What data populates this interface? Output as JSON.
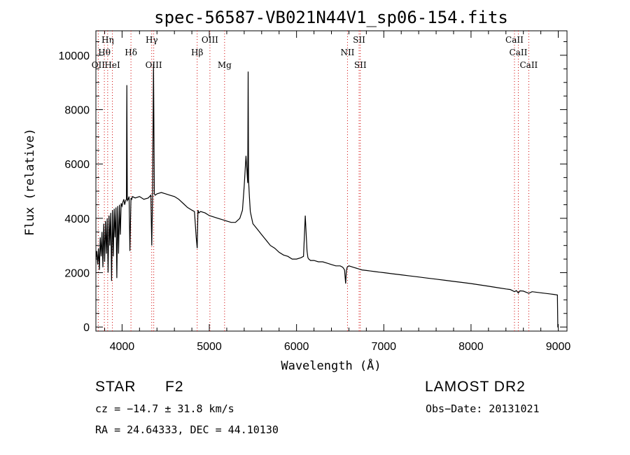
{
  "chart_data": {
    "type": "line",
    "title": "spec-56587-VB021N44V1_sp06-154.fits",
    "xlabel": "Wavelength (Å)",
    "ylabel": "Flux (relative)",
    "xlim": [
      3700,
      9100
    ],
    "ylim": [
      -150,
      10900
    ],
    "xticks": [
      4000,
      5000,
      6000,
      7000,
      8000,
      9000
    ],
    "yticks": [
      0,
      2000,
      4000,
      6000,
      8000,
      10000
    ],
    "grid": false,
    "line_color": "#000000",
    "marker_color": "#d00000",
    "spectrum": {
      "name": "",
      "x": [
        3700,
        3710,
        3720,
        3730,
        3740,
        3750,
        3760,
        3770,
        3780,
        3790,
        3800,
        3810,
        3820,
        3830,
        3840,
        3850,
        3860,
        3870,
        3880,
        3890,
        3900,
        3910,
        3920,
        3930,
        3940,
        3950,
        3960,
        3970,
        3980,
        3990,
        4000,
        4010,
        4020,
        4030,
        4040,
        4050,
        4055,
        4060,
        4070,
        4080,
        4090,
        4102,
        4110,
        4120,
        4150,
        4200,
        4250,
        4300,
        4330,
        4340,
        4350,
        4360,
        4370,
        4380,
        4400,
        4450,
        4500,
        4550,
        4600,
        4650,
        4700,
        4750,
        4800,
        4830,
        4850,
        4861,
        4870,
        4880,
        4900,
        4950,
        5000,
        5050,
        5100,
        5150,
        5200,
        5250,
        5300,
        5350,
        5380,
        5400,
        5420,
        5440,
        5445,
        5450,
        5460,
        5470,
        5480,
        5500,
        5550,
        5600,
        5650,
        5700,
        5750,
        5800,
        5850,
        5900,
        5950,
        6000,
        6050,
        6080,
        6100,
        6120,
        6130,
        6140,
        6160,
        6200,
        6250,
        6300,
        6350,
        6400,
        6450,
        6500,
        6530,
        6550,
        6563,
        6570,
        6580,
        6600,
        6650,
        6700,
        6750,
        6800,
        6850,
        6900,
        6950,
        7000,
        7100,
        7200,
        7300,
        7400,
        7500,
        7600,
        7700,
        7800,
        7900,
        8000,
        8100,
        8200,
        8300,
        8400,
        8450,
        8498,
        8520,
        8542,
        8560,
        8600,
        8662,
        8700,
        8800,
        8900,
        8950,
        8990,
        8995,
        9000
      ],
      "y": [
        2500,
        2800,
        2300,
        2900,
        2100,
        3300,
        2600,
        3500,
        2200,
        3800,
        2400,
        3900,
        2700,
        4000,
        2000,
        4100,
        3000,
        4200,
        1700,
        4300,
        2600,
        4350,
        3300,
        4400,
        1800,
        4450,
        2700,
        4500,
        3400,
        4550,
        4450,
        4600,
        4700,
        4500,
        4650,
        4700,
        8900,
        4650,
        4700,
        4800,
        2800,
        4750,
        4700,
        4800,
        4750,
        4800,
        4700,
        4750,
        4850,
        3000,
        4850,
        9700,
        4900,
        4850,
        4900,
        4950,
        4900,
        4850,
        4800,
        4700,
        4550,
        4400,
        4300,
        4250,
        3300,
        2900,
        4300,
        4200,
        4250,
        4200,
        4100,
        4050,
        4000,
        3950,
        3900,
        3850,
        3850,
        4000,
        4300,
        5200,
        6300,
        5300,
        9400,
        5400,
        4800,
        4250,
        4100,
        3800,
        3600,
        3400,
        3200,
        3000,
        2900,
        2750,
        2650,
        2600,
        2500,
        2500,
        2550,
        2600,
        4100,
        2800,
        2550,
        2500,
        2450,
        2450,
        2400,
        2400,
        2350,
        2300,
        2250,
        2250,
        2200,
        2100,
        1600,
        2050,
        2200,
        2250,
        2200,
        2150,
        2100,
        2080,
        2060,
        2040,
        2020,
        2000,
        1960,
        1920,
        1880,
        1840,
        1800,
        1760,
        1720,
        1680,
        1640,
        1600,
        1550,
        1500,
        1450,
        1400,
        1380,
        1300,
        1340,
        1250,
        1330,
        1320,
        1240,
        1300,
        1260,
        1220,
        1200,
        1180,
        0,
        0
      ]
    },
    "lines_row1": [
      {
        "label": "Hη",
        "wl": 3835
      },
      {
        "label": "OIII",
        "wl": 5007
      },
      {
        "label": "SII",
        "wl": 6717
      },
      {
        "label": "CaII",
        "wl": 8498
      }
    ],
    "lines_row2": [
      {
        "label": "Hθ",
        "wl": 3797
      },
      {
        "label": "Hδ",
        "wl": 4102
      },
      {
        "label": "Hβ",
        "wl": 4861
      },
      {
        "label": "NII",
        "wl": 6584
      },
      {
        "label": "CaII",
        "wl": 8542
      }
    ],
    "lines_row3": [
      {
        "label": "OII",
        "wl": 3727
      },
      {
        "label": "HeI",
        "wl": 3889
      },
      {
        "label": "OIII",
        "wl": 4363
      },
      {
        "label": "Mg",
        "wl": 5175
      },
      {
        "label": "SII",
        "wl": 6731
      },
      {
        "label": "CaII",
        "wl": 8662
      }
    ],
    "hgamma": {
      "label": "Hγ",
      "wl": 4340
    }
  },
  "info": {
    "object_class": "STAR",
    "subclass": "F2",
    "survey": "LAMOST DR2",
    "cz": "cz = −14.7 ± 31.8 km/s",
    "obs_date": "Obs−Date: 20131021",
    "coords": "RA =  24.64333, DEC =  44.10130"
  }
}
